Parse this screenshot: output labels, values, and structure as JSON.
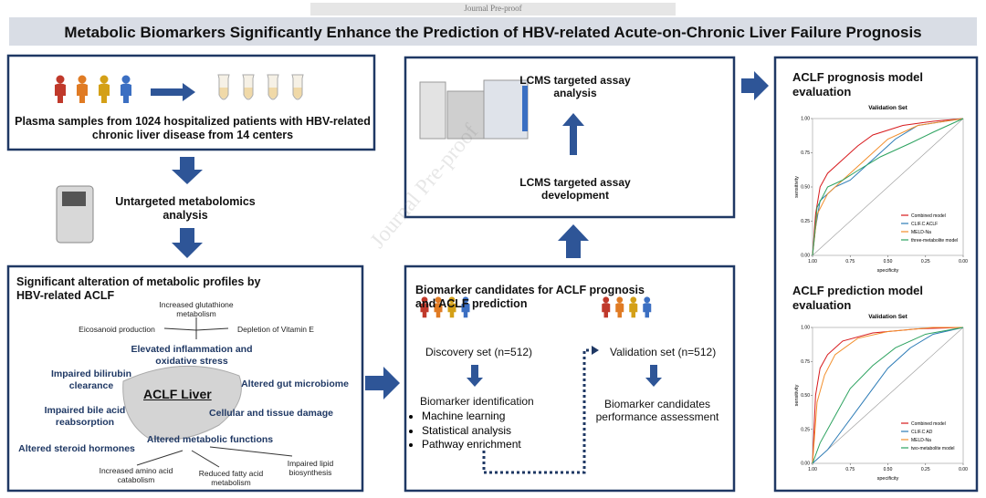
{
  "watermark_top": "Journal Pre-proof",
  "watermark_diagonal": "Journal Pre-proof",
  "header": {
    "title": "Metabolic Biomarkers Significantly Enhance the Prediction of HBV-related Acute-on-Chronic Liver Failure Prognosis"
  },
  "samples": {
    "text": "Plasma samples from 1024 hospitalized patients with HBV-related chronic liver disease from 14 centers"
  },
  "untargeted": {
    "text": "Untargeted metabolomics analysis"
  },
  "alterations": {
    "title": "Significant alteration of metabolic profiles by HBV-related ACLF",
    "organ": "ACLF Liver",
    "effects": [
      "Increased glutathione metabolism",
      "Eicosanoid production",
      "Depletion of Vitamin E",
      "Elevated inflammation and oxidative stress",
      "Impaired bilirubin clearance",
      "Altered gut microbiome",
      "Impaired bile acid reabsorption",
      "Cellular and tissue damage",
      "Altered metabolic functions",
      "Altered steroid hormones",
      "Increased amino acid catabolism",
      "Reduced fatty acid metabolism",
      "Impaired lipid biosynthesis"
    ]
  },
  "lcms": {
    "analysis": "LCMS targeted assay analysis",
    "development": "LCMS targeted assay development"
  },
  "biomarker": {
    "title": "Biomarker candidates for ACLF prognosis and ACLF prediction",
    "discovery": "Discovery set (n=512)",
    "validation": "Validation set (n=512)",
    "identification": "Biomarker identification",
    "methods": [
      "Machine learning",
      "Statistical analysis",
      "Pathway enrichment"
    ],
    "assessment": "Biomarker candidates performance assessment"
  },
  "chart_data": [
    {
      "type": "line",
      "heading": "ACLF prognosis model evaluation",
      "title": "Validation Set",
      "x_label": "specificity",
      "y_label": "sensitivity",
      "xlim": [
        1,
        0
      ],
      "ylim": [
        0,
        1
      ],
      "xticks": [
        {
          "value": 1,
          "label": "1.00"
        },
        0.75,
        {
          "value": 0.5,
          "label": "0.50"
        },
        0.25,
        {
          "value": 0,
          "label": "0.00"
        }
      ],
      "yticks": [
        {
          "value": 0,
          "label": "0.00"
        },
        0.25,
        {
          "value": 0.5,
          "label": "0.50"
        },
        0.75,
        {
          "value": 1,
          "label": "1.00"
        }
      ],
      "series": [
        {
          "name": "Combined model",
          "color": "#d7191c",
          "x": [
            1,
            0.98,
            0.95,
            0.9,
            0.8,
            0.7,
            0.6,
            0.4,
            0.2,
            0
          ],
          "values": [
            0,
            0.3,
            0.5,
            0.6,
            0.7,
            0.8,
            0.88,
            0.95,
            0.98,
            1
          ]
        },
        {
          "name": "CLIF.C ACLF",
          "color": "#2c7bb6",
          "x": [
            1,
            0.98,
            0.95,
            0.85,
            0.75,
            0.6,
            0.45,
            0.3,
            0
          ],
          "values": [
            0,
            0.2,
            0.4,
            0.5,
            0.55,
            0.7,
            0.85,
            0.95,
            1
          ]
        },
        {
          "name": "MELD-Na",
          "color": "#f28e2b",
          "x": [
            1,
            0.97,
            0.9,
            0.8,
            0.65,
            0.5,
            0.3,
            0
          ],
          "values": [
            0,
            0.3,
            0.45,
            0.55,
            0.7,
            0.85,
            0.95,
            1
          ]
        },
        {
          "name": "three-metabolite model",
          "color": "#2ca25f",
          "x": [
            1,
            0.97,
            0.9,
            0.8,
            0.7,
            0.55,
            0.35,
            0.2,
            0
          ],
          "values": [
            0,
            0.35,
            0.5,
            0.55,
            0.62,
            0.72,
            0.82,
            0.9,
            1
          ]
        }
      ]
    },
    {
      "type": "line",
      "heading": "ACLF prediction model evaluation",
      "title": "Validation Set",
      "x_label": "specificity",
      "y_label": "sensitivity",
      "xlim": [
        1,
        0
      ],
      "ylim": [
        0,
        1
      ],
      "xticks": [
        {
          "value": 1,
          "label": "1.00"
        },
        0.75,
        {
          "value": 0.5,
          "label": "0.50"
        },
        0.25,
        {
          "value": 0,
          "label": "0.00"
        }
      ],
      "yticks": [
        {
          "value": 0,
          "label": "0.00"
        },
        0.25,
        {
          "value": 0.5,
          "label": "0.50"
        },
        0.75,
        {
          "value": 1,
          "label": "1.00"
        }
      ],
      "series": [
        {
          "name": "Combined model",
          "color": "#d7191c",
          "x": [
            1,
            0.98,
            0.95,
            0.9,
            0.8,
            0.6,
            0.3,
            0
          ],
          "values": [
            0,
            0.5,
            0.7,
            0.8,
            0.9,
            0.96,
            0.99,
            1
          ]
        },
        {
          "name": "CLIF.C AD",
          "color": "#2c7bb6",
          "x": [
            1,
            0.9,
            0.8,
            0.7,
            0.6,
            0.5,
            0.35,
            0.2,
            0
          ],
          "values": [
            0,
            0.1,
            0.25,
            0.4,
            0.55,
            0.7,
            0.85,
            0.95,
            1
          ]
        },
        {
          "name": "MELD-Na",
          "color": "#f28e2b",
          "x": [
            1,
            0.97,
            0.92,
            0.85,
            0.7,
            0.5,
            0.2,
            0
          ],
          "values": [
            0,
            0.45,
            0.65,
            0.8,
            0.92,
            0.97,
            1,
            1
          ]
        },
        {
          "name": "two-metabolite model",
          "color": "#2ca25f",
          "x": [
            1,
            0.95,
            0.85,
            0.75,
            0.6,
            0.45,
            0.25,
            0
          ],
          "values": [
            0,
            0.15,
            0.35,
            0.55,
            0.72,
            0.85,
            0.95,
            1
          ]
        }
      ]
    }
  ]
}
